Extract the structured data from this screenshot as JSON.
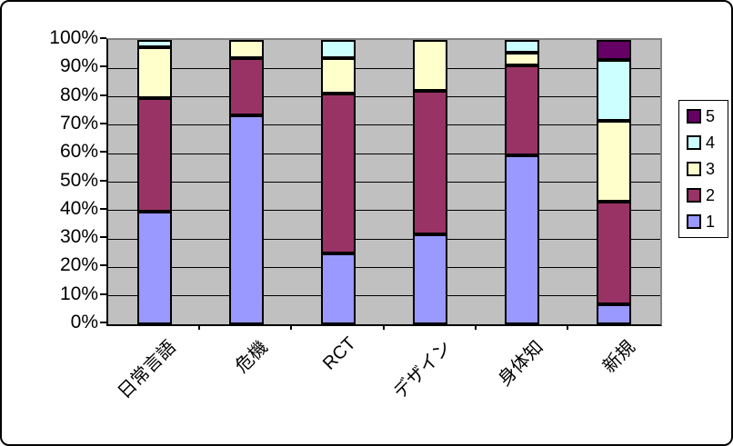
{
  "chart_data": {
    "type": "bar",
    "stacked": true,
    "percent_stacked": true,
    "title": "",
    "xlabel": "",
    "ylabel": "",
    "categories": [
      "日常言語",
      "危機",
      "RCT",
      "デザイン",
      "身体知",
      "新規"
    ],
    "series": [
      {
        "name": "1",
        "color": "#9999FF",
        "values": [
          39.5,
          73.5,
          25.0,
          31.5,
          59.5,
          7.0
        ]
      },
      {
        "name": "2",
        "color": "#993366",
        "values": [
          40.0,
          20.0,
          56.0,
          50.5,
          31.5,
          36.0
        ]
      },
      {
        "name": "3",
        "color": "#FFFFCC",
        "values": [
          18.0,
          6.5,
          12.5,
          18.0,
          4.5,
          28.5
        ]
      },
      {
        "name": "4",
        "color": "#CCFFFF",
        "values": [
          2.5,
          0,
          6.5,
          0,
          4.5,
          21.5
        ]
      },
      {
        "name": "5",
        "color": "#660066",
        "values": [
          0,
          0,
          0,
          0,
          0,
          7.0
        ]
      }
    ],
    "yticks": [
      "100%",
      "90%",
      "80%",
      "70%",
      "60%",
      "50%",
      "40%",
      "30%",
      "20%",
      "10%",
      "0%"
    ],
    "ylim": [
      0,
      100
    ],
    "grid": true,
    "plot_background": "#C0C0C0",
    "grid_color": "#000000",
    "frame_color": "#808080",
    "legend_position": "right",
    "legend_labels": [
      "5",
      "4",
      "3",
      "2",
      "1"
    ]
  }
}
